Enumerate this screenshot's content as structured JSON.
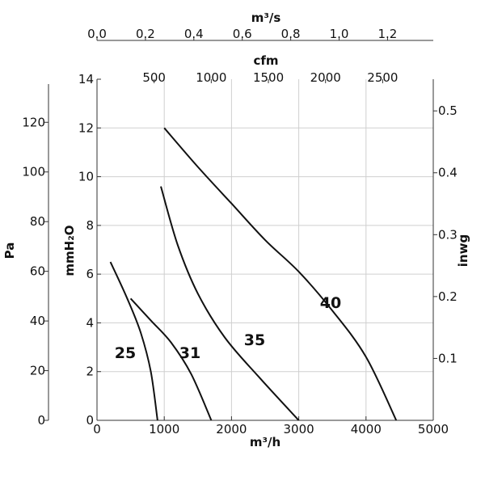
{
  "chart_data": {
    "type": "line",
    "axes": {
      "bottom": {
        "label": "m³/h",
        "ticks": [
          "0",
          "1000",
          "2000",
          "3000",
          "4000",
          "5000"
        ],
        "range": [
          0,
          5000
        ]
      },
      "top": {
        "label": "m³/s",
        "ticks": [
          "0.0",
          "0.2",
          "0.4",
          "0.6",
          "0.8",
          "1.0",
          "1.2"
        ]
      },
      "cfm": {
        "label": "cfm",
        "ticks": [
          "500",
          "1000",
          "1500",
          "2000",
          "2500"
        ]
      },
      "left_inner": {
        "label": "mmH₂O",
        "ticks": [
          "0",
          "2",
          "4",
          "6",
          "8",
          "10",
          "12",
          "14"
        ],
        "range": [
          0,
          14
        ]
      },
      "left_outer": {
        "label": "Pa",
        "ticks": [
          "0",
          "20",
          "40",
          "60",
          "80",
          "100",
          "120"
        ]
      },
      "right": {
        "label": "inwg",
        "ticks": [
          "0.1",
          "0.2",
          "0.3",
          "0.4",
          "0.5"
        ]
      }
    },
    "grid": true,
    "series": [
      {
        "name": "25",
        "points": [
          [
            200,
            6.5
          ],
          [
            450,
            5.0
          ],
          [
            650,
            3.6
          ],
          [
            800,
            2.0
          ],
          [
            900,
            0
          ]
        ]
      },
      {
        "name": "31",
        "points": [
          [
            500,
            5.0
          ],
          [
            800,
            4.1
          ],
          [
            1100,
            3.2
          ],
          [
            1400,
            1.9
          ],
          [
            1700,
            0
          ]
        ]
      },
      {
        "name": "35",
        "points": [
          [
            950,
            9.6
          ],
          [
            1200,
            7.2
          ],
          [
            1500,
            5.2
          ],
          [
            1900,
            3.4
          ],
          [
            2400,
            1.8
          ],
          [
            3000,
            0
          ]
        ]
      },
      {
        "name": "40",
        "points": [
          [
            1000,
            12.0
          ],
          [
            1500,
            10.4
          ],
          [
            2000,
            8.9
          ],
          [
            2500,
            7.4
          ],
          [
            3000,
            6.1
          ],
          [
            3500,
            4.5
          ],
          [
            4000,
            2.6
          ],
          [
            4450,
            0
          ]
        ]
      }
    ]
  }
}
